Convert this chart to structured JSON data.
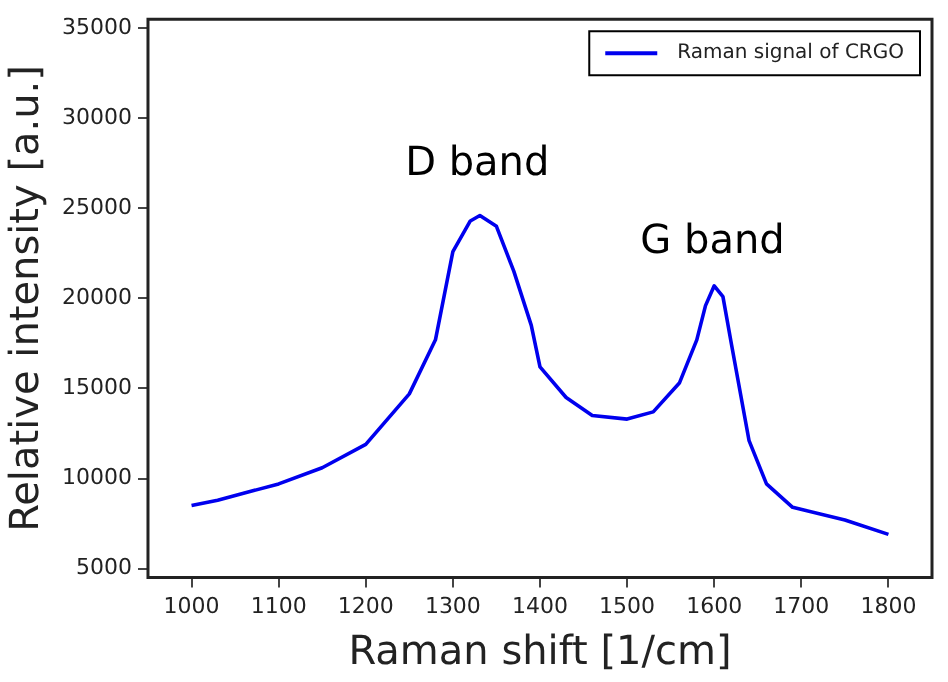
{
  "chart_data": {
    "type": "line",
    "xlabel": "Raman shift [1/cm]",
    "ylabel": "Relative intensity [a.u.]",
    "x": [
      1000,
      1030,
      1100,
      1150,
      1200,
      1250,
      1280,
      1300,
      1320,
      1331,
      1350,
      1370,
      1390,
      1400,
      1430,
      1460,
      1500,
      1530,
      1560,
      1580,
      1590,
      1600,
      1610,
      1620,
      1640,
      1660,
      1690,
      1750,
      1800
    ],
    "series": [
      {
        "name": "Raman signal of CRGO",
        "color": "#0000ee",
        "values": [
          8500,
          8800,
          9700,
          10600,
          11900,
          14700,
          17700,
          22600,
          24300,
          24600,
          24000,
          21500,
          18500,
          16200,
          14500,
          13500,
          13300,
          13700,
          15300,
          17700,
          19600,
          20700,
          20100,
          17400,
          12100,
          9700,
          8400,
          7700,
          6900
        ]
      }
    ],
    "xlim": [
      950,
      1850
    ],
    "xticks": [
      1000,
      1100,
      1200,
      1300,
      1400,
      1500,
      1600,
      1700,
      1800
    ],
    "ylim": [
      4500,
      35500
    ],
    "yticks": [
      5000,
      10000,
      15000,
      20000,
      25000,
      30000,
      35000
    ],
    "annotations": [
      "D band",
      "G band"
    ],
    "grid": false,
    "legend": "top right",
    "marker": "none",
    "line_style": "solid"
  }
}
